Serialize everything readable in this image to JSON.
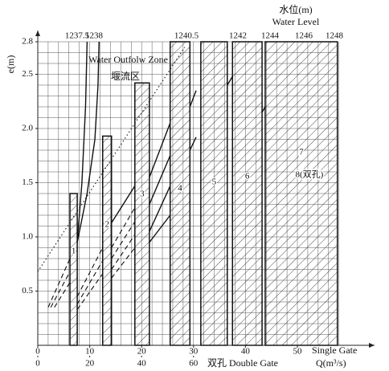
{
  "chart_data": {
    "type": "nomogram",
    "y_label": "e(m)",
    "x_label": "Single Gate",
    "x_unit": "Q(m³/s)",
    "x2_label": "双孔 Double Gate",
    "top_title_cn": "水位(m)",
    "top_title_en": "Water Level",
    "zone_label_en": "Water Outfolw Zone",
    "zone_label_cn": "堰流区",
    "ylim": [
      0,
      2.8
    ],
    "yticks": [
      0.5,
      {
        "value": 1.0,
        "label": "1.0"
      },
      1.5,
      {
        "value": 2.0,
        "label": "2.0"
      },
      2.5,
      2.8
    ],
    "xlim": [
      0,
      63
    ],
    "xticks": [
      0,
      10,
      20,
      30,
      40,
      50
    ],
    "x2lim": [
      0,
      126
    ],
    "x2ticks": [
      0,
      20,
      40,
      60
    ],
    "grid": true,
    "grid_step": {
      "x": 2,
      "y": 0.1
    },
    "water_levels": [
      1237.5,
      1238,
      1240.5,
      1242,
      1244,
      1246,
      1248
    ],
    "zones": [
      {
        "label": "1",
        "q": [
          6.2,
          7.6
        ],
        "e": 1.4
      },
      {
        "label": "2",
        "q": [
          12.5,
          14.2
        ],
        "e": 1.93
      },
      {
        "label": "3",
        "q": [
          18.7,
          21.5
        ],
        "e": 2.42
      },
      {
        "label": "4",
        "q": [
          25.5,
          29.3
        ],
        "e": 2.8
      },
      {
        "label": "5",
        "q": [
          31.4,
          36.5
        ],
        "e": 2.8
      },
      {
        "label": "6",
        "q": [
          37.5,
          43.2
        ],
        "e": 2.8
      },
      {
        "label": "7",
        "q": [
          43.8,
          57.7
        ],
        "e": 2.8
      }
    ],
    "zone_8_label": "8(双孔)",
    "lines": [
      {
        "style": "dotted",
        "x": [
          0,
          28.3
        ],
        "y": [
          0.68,
          2.75
        ]
      },
      {
        "style": "solid",
        "x": [
          7.6,
          8.5,
          9.2,
          9.4,
          9.5
        ],
        "y": [
          0.95,
          1.5,
          2.2,
          2.6,
          2.8
        ]
      },
      {
        "style": "solid",
        "x": [
          7.6,
          9.5,
          11,
          11.6,
          11.8
        ],
        "y": [
          0.95,
          1.4,
          1.9,
          2.4,
          2.8
        ]
      },
      {
        "style": "solid",
        "x": [
          14.2,
          18.7
        ],
        "y": [
          1.13,
          1.47
        ]
      },
      {
        "style": "solid",
        "x": [
          21.5,
          25.5
        ],
        "y": [
          1.55,
          2.05
        ]
      },
      {
        "style": "solid",
        "x": [
          21.5,
          25.5
        ],
        "y": [
          1.3,
          1.75
        ]
      },
      {
        "style": "solid",
        "x": [
          21.5,
          25.5
        ],
        "y": [
          1.05,
          1.47
        ]
      },
      {
        "style": "solid",
        "x": [
          21.5,
          25.5
        ],
        "y": [
          0.95,
          1.2
        ]
      },
      {
        "style": "solid",
        "x": [
          29.3,
          30.5
        ],
        "y": [
          2.2,
          2.35
        ]
      },
      {
        "style": "solid",
        "x": [
          29.3,
          30.5
        ],
        "y": [
          1.8,
          1.92
        ]
      },
      {
        "style": "solid",
        "x": [
          36.5,
          37.5
        ],
        "y": [
          2.4,
          2.48
        ]
      },
      {
        "style": "solid",
        "x": [
          43.2,
          43.8
        ],
        "y": [
          2.15,
          2.2
        ]
      },
      {
        "style": "dashed",
        "x": [
          2,
          6.2
        ],
        "y": [
          0.35,
          0.8
        ]
      },
      {
        "style": "dashed",
        "x": [
          2.5,
          6.2
        ],
        "y": [
          0.35,
          0.68
        ]
      },
      {
        "style": "dashed",
        "x": [
          3.2,
          6.2
        ],
        "y": [
          0.35,
          0.58
        ]
      },
      {
        "style": "dashed",
        "x": [
          7.6,
          12.5
        ],
        "y": [
          0.45,
          0.9
        ]
      },
      {
        "style": "dashed",
        "x": [
          7.6,
          12.5
        ],
        "y": [
          0.38,
          0.78
        ]
      },
      {
        "style": "dashed",
        "x": [
          7.6,
          12.5
        ],
        "y": [
          0.33,
          0.66
        ]
      },
      {
        "style": "dashed",
        "x": [
          14.2,
          18.7
        ],
        "y": [
          0.9,
          1.27
        ]
      },
      {
        "style": "dashed",
        "x": [
          14.2,
          18.7
        ],
        "y": [
          0.8,
          1.14
        ]
      },
      {
        "style": "dashed",
        "x": [
          14.2,
          18.7
        ],
        "y": [
          0.7,
          1.02
        ]
      },
      {
        "style": "dashed",
        "x": [
          14.2,
          18.7
        ],
        "y": [
          0.62,
          0.9
        ]
      }
    ]
  }
}
